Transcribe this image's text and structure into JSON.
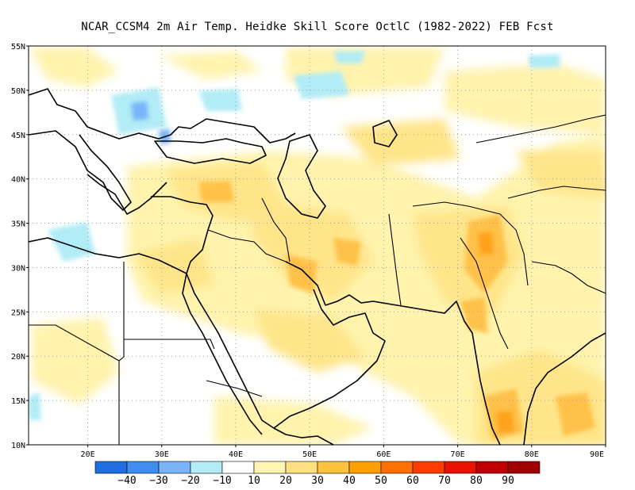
{
  "title": "NCAR_CCSM4  2m Air Temp. Heidke Skill Score OctlC (1982-2022) FEB Fcst",
  "lat_labels": [
    "55N",
    "50N",
    "45N",
    "40N",
    "35N",
    "30N",
    "25N",
    "20N",
    "15N",
    "10N"
  ],
  "lon_labels": [
    "20E",
    "30E",
    "40E",
    "50E",
    "60E",
    "70E",
    "80E",
    "90E"
  ],
  "colorbar": {
    "labels": [
      "−40",
      "−30",
      "−20",
      "−10",
      "10",
      "20",
      "30",
      "40",
      "50",
      "60",
      "70",
      "80",
      "90"
    ],
    "colors": [
      "#1f6fe0",
      "#3d8ef0",
      "#78b4f7",
      "#b4ecf5",
      "#ffffff",
      "#fff5b0",
      "#ffe080",
      "#ffc23c",
      "#ffa000",
      "#ff7000",
      "#ff3c00",
      "#e81400",
      "#c00000",
      "#a00000"
    ]
  },
  "palette": {
    "light_yellow": "#fff3ad",
    "yellow": "#ffe58a",
    "orange": "#ffc14a",
    "dark_orange": "#ffa21c",
    "light_blue": "#b2ecf6",
    "blue": "#78b4f7",
    "deep_blue": "#3d8ef0",
    "coast": "#000000",
    "grid": "#a0a0a0"
  }
}
